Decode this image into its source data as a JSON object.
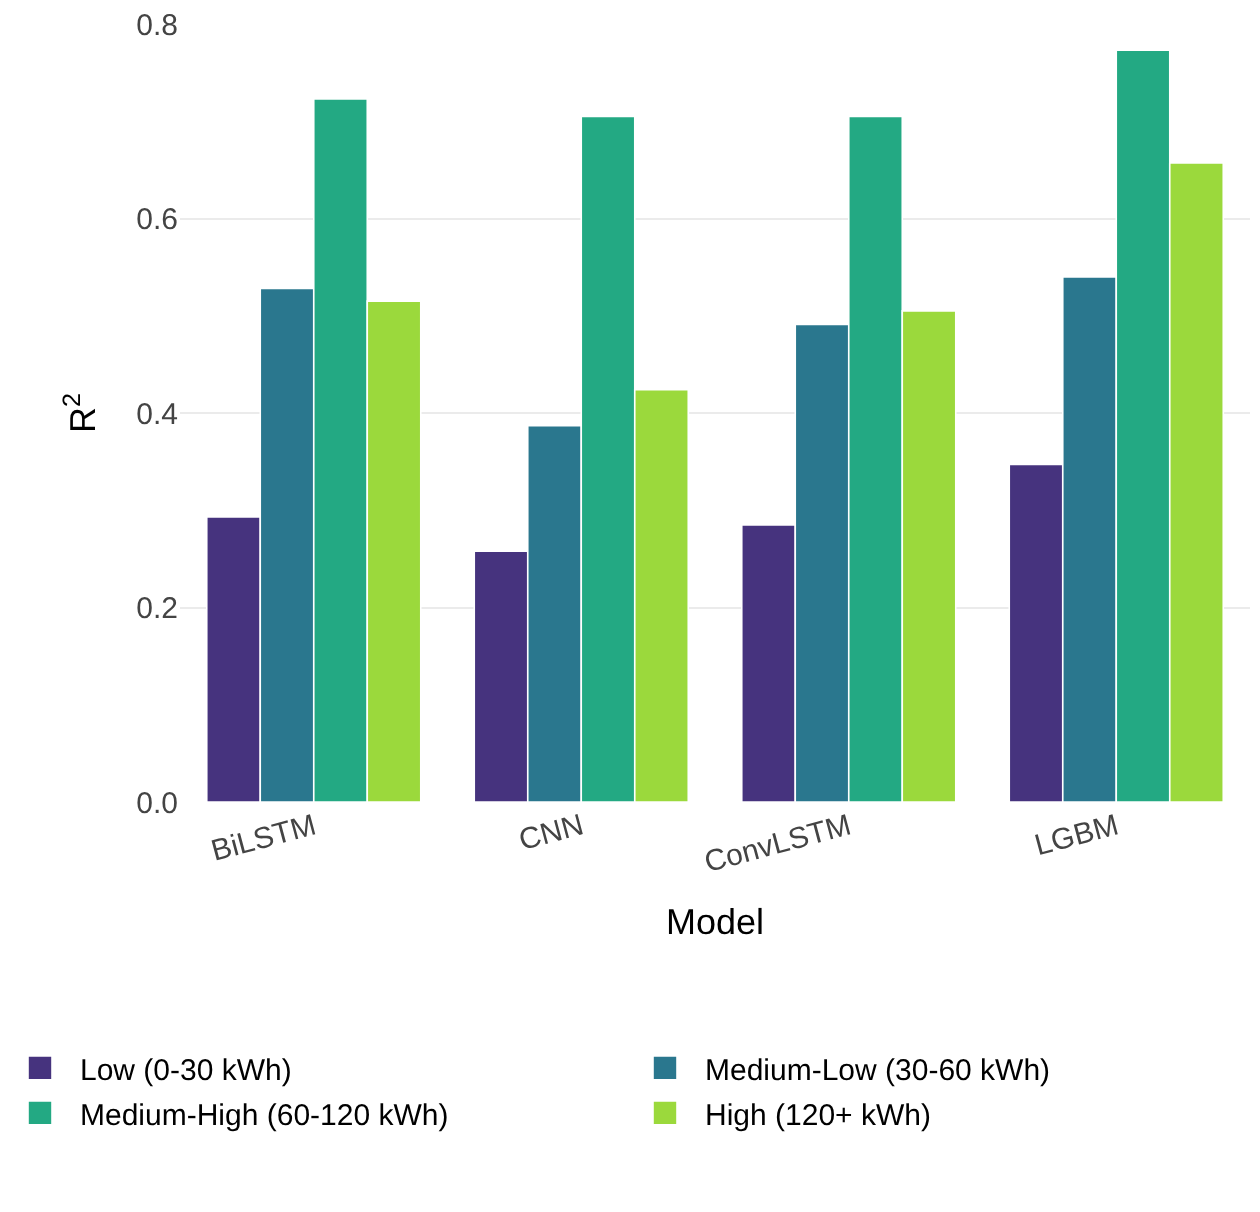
{
  "chart_data": {
    "type": "bar",
    "xlabel": "Model",
    "ylabel": "R$^{2}$",
    "categories": [
      "BiLSTM",
      "CNN",
      "ConvLSTM",
      "LGBM"
    ],
    "series": [
      {
        "name": "Low (0-30 kWh)",
        "color": "#46337e",
        "values": [
          0.293,
          0.258,
          0.285,
          0.347
        ]
      },
      {
        "name": "Medium-Low (30-60 kWh)",
        "color": "#2a778e",
        "values": [
          0.528,
          0.387,
          0.491,
          0.54
        ]
      },
      {
        "name": "Medium-High (60-120 kWh)",
        "color": "#23a983",
        "values": [
          0.723,
          0.705,
          0.705,
          0.773
        ]
      },
      {
        "name": "High (120+ kWh)",
        "color": "#9bd93c",
        "values": [
          0.515,
          0.424,
          0.505,
          0.657
        ]
      }
    ],
    "ylim": [
      0,
      0.8
    ],
    "yticks": [
      {
        "value": 0,
        "label": "0.0"
      },
      0.2,
      0.4,
      0.6,
      0.8
    ],
    "grid": "y",
    "legend": "bottom"
  }
}
